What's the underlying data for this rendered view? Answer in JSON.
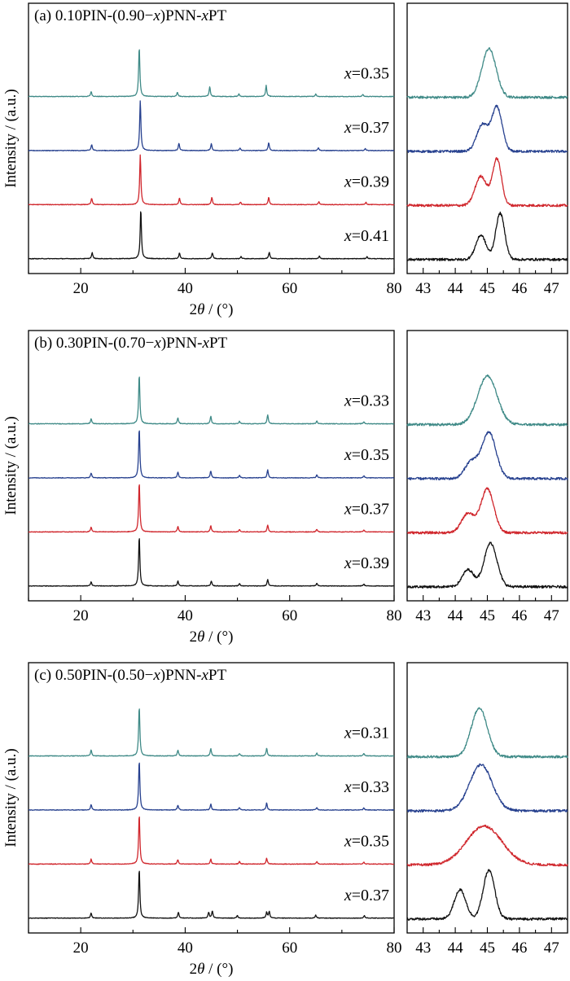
{
  "chart_data": [
    {
      "panel": "(a)",
      "type": "line",
      "title_prefix": "(a) 0.10PIN-(0.90−",
      "title_x": "x",
      "title_mid": ")PNN-",
      "title_x2": "x",
      "title_suffix": "PT",
      "ylabel": "Intensity / (a.u.)",
      "xlabel_main": {
        "pre": "2",
        "theta": "θ",
        "post": " / (°)"
      },
      "main_xlim": [
        10,
        80
      ],
      "main_xticks": [
        "20",
        "40",
        "60",
        "80"
      ],
      "zoom_xlim": [
        42.5,
        47.5
      ],
      "zoom_xticks": [
        "43",
        "44",
        "45",
        "46",
        "47"
      ],
      "series": [
        {
          "name": "x=0.35",
          "x_prefix": "x",
          "x_value": "=0.35",
          "color": "#3f8a87",
          "peaks": [
            [
              22.0,
              0.1
            ],
            [
              31.2,
              1.0
            ],
            [
              38.5,
              0.09
            ],
            [
              44.7,
              0.2
            ],
            [
              50.3,
              0.05
            ],
            [
              55.5,
              0.22
            ],
            [
              65.0,
              0.05
            ],
            [
              74.0,
              0.04
            ]
          ],
          "zoom_peaks": [
            [
              45.05,
              1.0,
              0.22
            ]
          ]
        },
        {
          "name": "x=0.37",
          "x_prefix": "x",
          "x_value": "=0.37",
          "color": "#27418f",
          "peaks": [
            [
              22.1,
              0.12
            ],
            [
              31.4,
              1.0
            ],
            [
              38.8,
              0.15
            ],
            [
              45.0,
              0.14
            ],
            [
              50.5,
              0.05
            ],
            [
              56.0,
              0.16
            ],
            [
              65.5,
              0.06
            ],
            [
              74.5,
              0.04
            ]
          ],
          "zoom_peaks": [
            [
              44.85,
              0.55,
              0.18
            ],
            [
              45.3,
              0.9,
              0.16
            ]
          ]
        },
        {
          "name": "x=0.39",
          "x_prefix": "x",
          "x_value": "=0.39",
          "color": "#d0262c",
          "peaks": [
            [
              22.1,
              0.13
            ],
            [
              31.4,
              1.0
            ],
            [
              38.9,
              0.13
            ],
            [
              45.1,
              0.15
            ],
            [
              50.6,
              0.05
            ],
            [
              56.0,
              0.15
            ],
            [
              65.6,
              0.06
            ],
            [
              74.6,
              0.05
            ]
          ],
          "zoom_peaks": [
            [
              44.8,
              0.6,
              0.18
            ],
            [
              45.3,
              0.95,
              0.14
            ]
          ]
        },
        {
          "name": "x=0.41",
          "x_prefix": "x",
          "x_value": "=0.41",
          "color": "#111111",
          "peaks": [
            [
              22.2,
              0.12
            ],
            [
              31.5,
              1.0
            ],
            [
              38.9,
              0.12
            ],
            [
              45.2,
              0.12
            ],
            [
              50.7,
              0.04
            ],
            [
              56.1,
              0.13
            ],
            [
              65.7,
              0.05
            ],
            [
              74.8,
              0.04
            ]
          ],
          "zoom_peaks": [
            [
              44.8,
              0.5,
              0.16
            ],
            [
              45.4,
              0.95,
              0.14
            ]
          ]
        }
      ]
    },
    {
      "panel": "(b)",
      "type": "line",
      "title_prefix": "(b) 0.30PIN-(0.70−",
      "title_x": "x",
      "title_mid": ")PNN-",
      "title_x2": "x",
      "title_suffix": "PT",
      "ylabel": "Intensity / (a.u.)",
      "xlabel_main": {
        "pre": "2",
        "theta": "θ",
        "post": " / (°)"
      },
      "main_xlim": [
        10,
        80
      ],
      "main_xticks": [
        "20",
        "40",
        "60",
        "80"
      ],
      "zoom_xlim": [
        42.5,
        47.5
      ],
      "zoom_xticks": [
        "43",
        "44",
        "45",
        "46",
        "47"
      ],
      "series": [
        {
          "name": "x=0.33",
          "x_prefix": "x",
          "x_value": "=0.33",
          "color": "#3f8a87",
          "peaks": [
            [
              22.0,
              0.1
            ],
            [
              31.2,
              1.0
            ],
            [
              38.6,
              0.12
            ],
            [
              44.9,
              0.15
            ],
            [
              50.4,
              0.05
            ],
            [
              55.8,
              0.18
            ],
            [
              65.2,
              0.06
            ],
            [
              74.2,
              0.04
            ]
          ],
          "zoom_peaks": [
            [
              45.0,
              1.0,
              0.3
            ]
          ]
        },
        {
          "name": "x=0.35",
          "x_prefix": "x",
          "x_value": "=0.35",
          "color": "#27418f",
          "peaks": [
            [
              22.0,
              0.1
            ],
            [
              31.2,
              1.0
            ],
            [
              38.6,
              0.12
            ],
            [
              44.9,
              0.14
            ],
            [
              50.4,
              0.05
            ],
            [
              55.8,
              0.16
            ],
            [
              65.2,
              0.06
            ],
            [
              74.2,
              0.04
            ]
          ],
          "zoom_peaks": [
            [
              44.5,
              0.35,
              0.2
            ],
            [
              45.05,
              0.95,
              0.22
            ]
          ]
        },
        {
          "name": "x=0.37",
          "x_prefix": "x",
          "x_value": "=0.37",
          "color": "#d0262c",
          "peaks": [
            [
              22.0,
              0.1
            ],
            [
              31.2,
              1.0
            ],
            [
              38.6,
              0.11
            ],
            [
              44.9,
              0.12
            ],
            [
              50.4,
              0.05
            ],
            [
              55.8,
              0.14
            ],
            [
              65.2,
              0.05
            ],
            [
              74.2,
              0.04
            ]
          ],
          "zoom_peaks": [
            [
              44.4,
              0.4,
              0.2
            ],
            [
              45.0,
              0.9,
              0.2
            ]
          ]
        },
        {
          "name": "x=0.39",
          "x_prefix": "x",
          "x_value": "=0.39",
          "color": "#111111",
          "peaks": [
            [
              22.0,
              0.08
            ],
            [
              31.2,
              1.0
            ],
            [
              38.6,
              0.1
            ],
            [
              45.0,
              0.1
            ],
            [
              50.4,
              0.05
            ],
            [
              55.8,
              0.13
            ],
            [
              65.2,
              0.05
            ],
            [
              74.2,
              0.04
            ]
          ],
          "zoom_peaks": [
            [
              44.4,
              0.35,
              0.18
            ],
            [
              45.1,
              0.9,
              0.2
            ]
          ]
        }
      ]
    },
    {
      "panel": "(c)",
      "type": "line",
      "title_prefix": "(c) 0.50PIN-(0.50−",
      "title_x": "x",
      "title_mid": ")PNN-",
      "title_x2": "x",
      "title_suffix": "PT",
      "ylabel": "Intensity / (a.u.)",
      "xlabel_main": {
        "pre": "2",
        "theta": "θ",
        "post": " / (°)"
      },
      "main_xlim": [
        10,
        80
      ],
      "main_xticks": [
        "20",
        "40",
        "60",
        "80"
      ],
      "zoom_xlim": [
        42.5,
        47.5
      ],
      "zoom_xticks": [
        "43",
        "44",
        "45",
        "46",
        "47"
      ],
      "series": [
        {
          "name": "x=0.31",
          "x_prefix": "x",
          "x_value": "=0.31",
          "color": "#3f8a87",
          "peaks": [
            [
              22.0,
              0.12
            ],
            [
              31.2,
              1.0
            ],
            [
              38.6,
              0.12
            ],
            [
              44.9,
              0.15
            ],
            [
              50.4,
              0.05
            ],
            [
              55.6,
              0.16
            ],
            [
              65.2,
              0.06
            ],
            [
              74.2,
              0.05
            ]
          ],
          "zoom_peaks": [
            [
              44.75,
              1.0,
              0.25
            ]
          ]
        },
        {
          "name": "x=0.33",
          "x_prefix": "x",
          "x_value": "=0.33",
          "color": "#27418f",
          "peaks": [
            [
              22.0,
              0.11
            ],
            [
              31.2,
              1.0
            ],
            [
              38.6,
              0.1
            ],
            [
              44.9,
              0.12
            ],
            [
              50.4,
              0.05
            ],
            [
              55.6,
              0.14
            ],
            [
              65.2,
              0.05
            ],
            [
              74.2,
              0.04
            ]
          ],
          "zoom_peaks": [
            [
              44.8,
              0.95,
              0.35
            ]
          ]
        },
        {
          "name": "x=0.35",
          "x_prefix": "x",
          "x_value": "=0.35",
          "color": "#d0262c",
          "peaks": [
            [
              22.0,
              0.1
            ],
            [
              31.2,
              1.0
            ],
            [
              38.6,
              0.09
            ],
            [
              44.9,
              0.1
            ],
            [
              50.4,
              0.05
            ],
            [
              55.6,
              0.12
            ],
            [
              65.2,
              0.05
            ],
            [
              74.2,
              0.04
            ]
          ],
          "zoom_peaks": [
            [
              44.9,
              0.8,
              0.55
            ]
          ]
        },
        {
          "name": "x=0.37",
          "x_prefix": "x",
          "x_value": "=0.37",
          "color": "#111111",
          "peaks": [
            [
              22.0,
              0.1
            ],
            [
              31.2,
              1.0
            ],
            [
              38.7,
              0.12
            ],
            [
              44.5,
              0.12
            ],
            [
              45.2,
              0.14
            ],
            [
              50.0,
              0.05
            ],
            [
              55.6,
              0.12
            ],
            [
              56.1,
              0.13
            ],
            [
              65.0,
              0.06
            ],
            [
              74.3,
              0.05
            ]
          ],
          "zoom_peaks": [
            [
              44.15,
              0.6,
              0.18
            ],
            [
              45.05,
              1.0,
              0.18
            ]
          ]
        }
      ]
    }
  ]
}
